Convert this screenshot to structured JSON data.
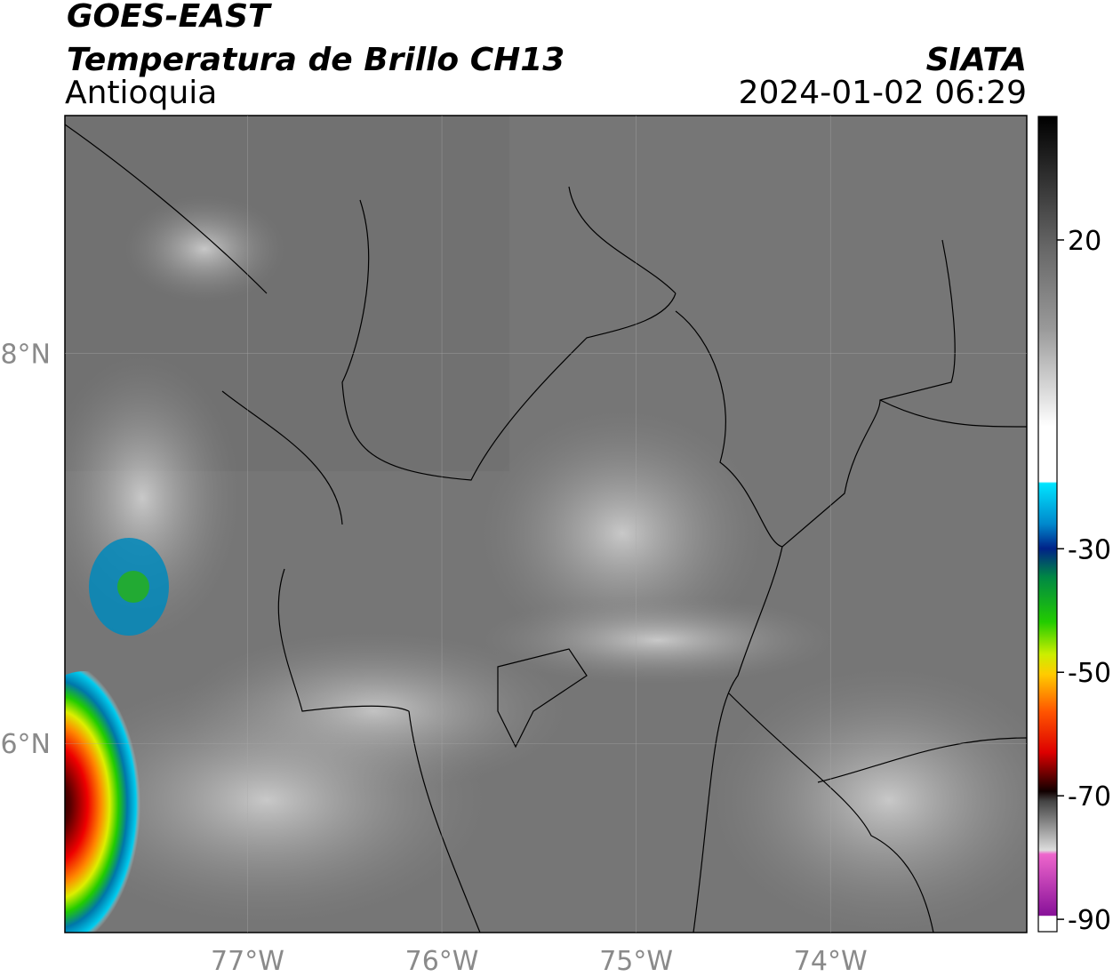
{
  "header": {
    "satellite": "GOES-EAST",
    "product": "Temperatura de Brillo CH13",
    "source": "SIATA",
    "region": "Antioquia",
    "datetime": "2024-01-02 06:29"
  },
  "map": {
    "xlim": [
      -77.94,
      -72.99
    ],
    "ylim": [
      5.03,
      9.22
    ],
    "xticks": [
      {
        "value": -77,
        "label": "77°W"
      },
      {
        "value": -76,
        "label": "76°W"
      },
      {
        "value": -75,
        "label": "75°W"
      },
      {
        "value": -74,
        "label": "74°W"
      }
    ],
    "yticks": [
      {
        "value": 8,
        "label": "8°N"
      },
      {
        "value": 6,
        "label": "6°N"
      }
    ],
    "grid": true
  },
  "colorbar": {
    "lim": [
      -92,
      40
    ],
    "ticks": [
      20,
      -30,
      -50,
      -70,
      -90
    ]
  }
}
